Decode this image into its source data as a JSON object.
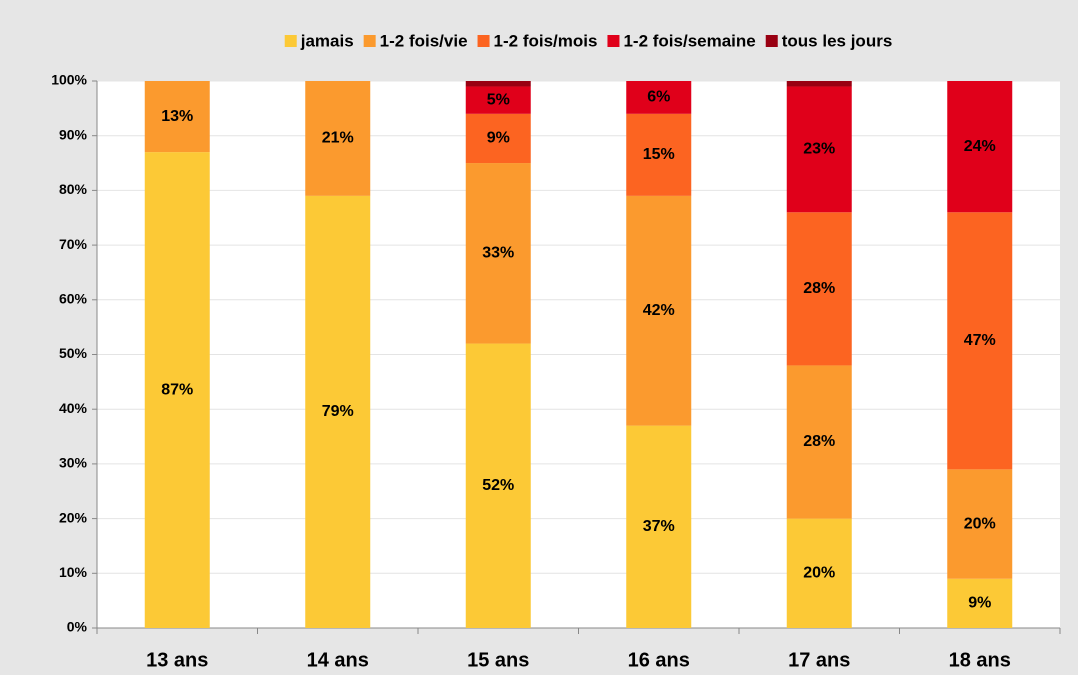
{
  "chart_data": {
    "type": "stacked_bar",
    "categories": [
      "13 ans",
      "14 ans",
      "15 ans",
      "16 ans",
      "17 ans",
      "18 ans"
    ],
    "series": [
      {
        "name": "jamais",
        "color": "#fcc936",
        "values": [
          87,
          79,
          52,
          37,
          20,
          9
        ],
        "value_labels": [
          "87%",
          "79%",
          "52%",
          "37%",
          "20%",
          "9%"
        ]
      },
      {
        "name": "1-2 fois/vie",
        "color": "#fb9a2e",
        "values": [
          13,
          21,
          33,
          42,
          28,
          20
        ],
        "value_labels": [
          "13%",
          "21%",
          "33%",
          "42%",
          "28%",
          "20%"
        ]
      },
      {
        "name": "1-2 fois/mois",
        "color": "#fc6421",
        "values": [
          0,
          0,
          9,
          15,
          28,
          47
        ],
        "value_labels": [
          null,
          null,
          "9%",
          "15%",
          "28%",
          "47%"
        ]
      },
      {
        "name": "1-2 fois/semaine",
        "color": "#e0001a",
        "values": [
          0,
          0,
          5,
          6,
          23,
          24
        ],
        "value_labels": [
          null,
          null,
          "5%",
          "6%",
          "23%",
          "24%"
        ]
      },
      {
        "name": "tous les jours",
        "color": "#990012",
        "values": [
          0,
          0,
          1,
          0,
          1,
          0
        ],
        "value_labels": [
          null,
          null,
          null,
          null,
          null,
          null
        ]
      }
    ],
    "ylim": [
      0,
      100
    ],
    "yticks": [
      {
        "value": 0,
        "label": "0%"
      },
      {
        "value": 10,
        "label": "10%"
      },
      {
        "value": 20,
        "label": "20%"
      },
      {
        "value": 30,
        "label": "30%"
      },
      {
        "value": 40,
        "label": "40%"
      },
      {
        "value": 50,
        "label": "50%"
      },
      {
        "value": 60,
        "label": "60%"
      },
      {
        "value": 70,
        "label": "70%"
      },
      {
        "value": 80,
        "label": "80%"
      },
      {
        "value": 90,
        "label": "90%"
      },
      {
        "value": 100,
        "label": "100%"
      }
    ],
    "grid": true,
    "legend": "top"
  }
}
